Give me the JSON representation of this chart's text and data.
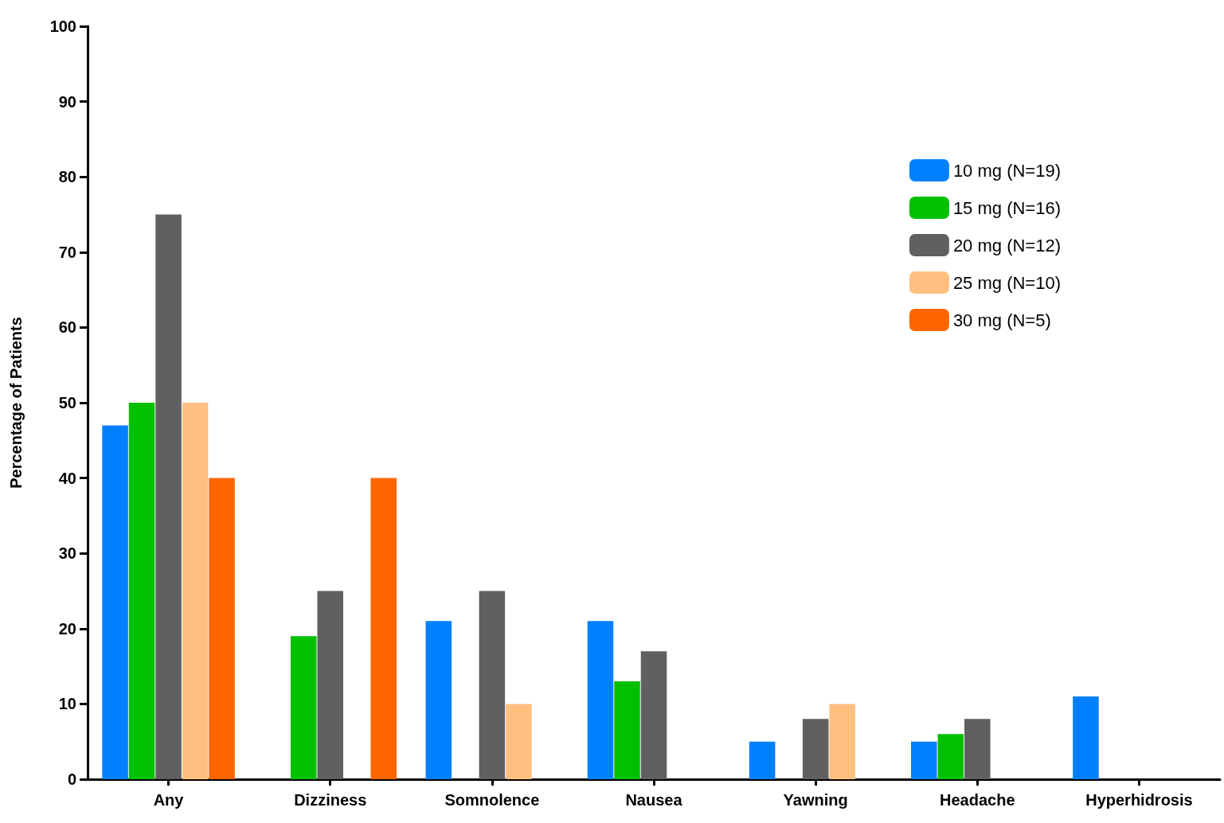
{
  "chart_data": {
    "type": "bar",
    "ylabel": "Percentage of Patients",
    "categories": [
      "Any",
      "Dizziness",
      "Somnolence",
      "Nausea",
      "Yawning",
      "Headache",
      "Hyperhidrosis"
    ],
    "series": [
      {
        "name": "10 mg (N=19)",
        "color": "#0080ff",
        "values": [
          47,
          null,
          21,
          21,
          5,
          5,
          11
        ]
      },
      {
        "name": "15 mg (N=16)",
        "color": "#00c000",
        "values": [
          50,
          19,
          null,
          13,
          null,
          6,
          null
        ]
      },
      {
        "name": "20 mg (N=12)",
        "color": "#606060",
        "values": [
          75,
          25,
          25,
          17,
          8,
          8,
          null
        ]
      },
      {
        "name": "25 mg (N=10)",
        "color": "#ffc080",
        "values": [
          50,
          null,
          10,
          null,
          10,
          null,
          null
        ]
      },
      {
        "name": "30 mg (N=5)",
        "color": "#ff6600",
        "values": [
          40,
          40,
          null,
          null,
          null,
          null,
          null
        ]
      }
    ],
    "ylim": [
      0,
      100
    ],
    "yticks": [
      0,
      10,
      20,
      30,
      40,
      50,
      60,
      70,
      80,
      90,
      100
    ],
    "grid": false,
    "legend": "top right"
  }
}
